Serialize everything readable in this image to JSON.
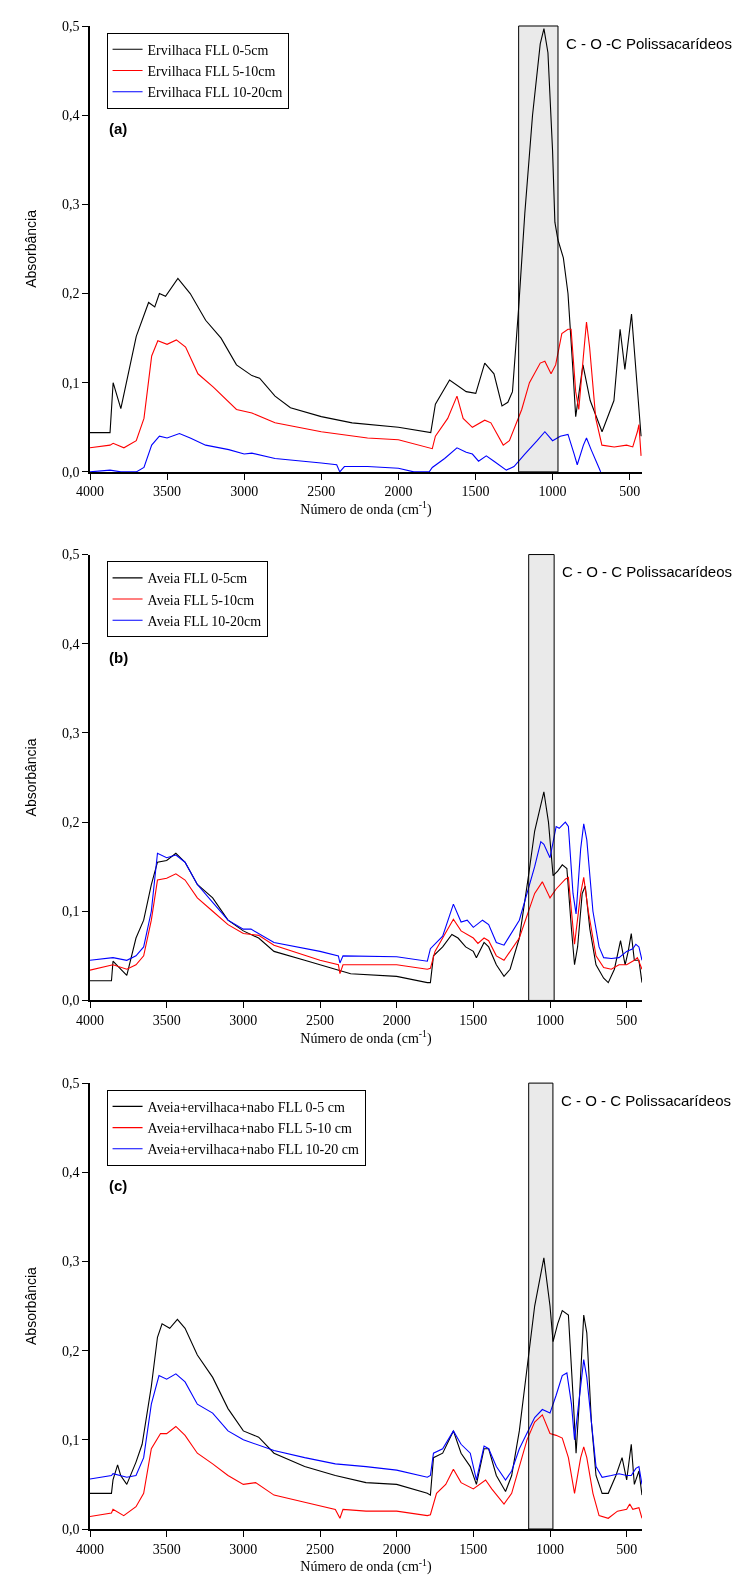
{
  "chart_data": [
    {
      "type": "line",
      "xlabel": "Número de onda (cm$^{-1}$)",
      "ylabel": "Absorbância",
      "annotations": [
        "(a)"
      ],
      "legend": "top left",
      "xlim": [
        4000,
        420
      ],
      "xticks": [
        4000,
        3500,
        3000,
        2500,
        2000,
        1500,
        1000,
        500
      ],
      "ylim": [
        0,
        0.5
      ],
      "yticks": [
        {
          "value": 0,
          "label": "0,0"
        },
        {
          "value": 0.1,
          "label": "0,1"
        },
        {
          "value": 0.2,
          "label": "0,2"
        },
        {
          "value": 0.3,
          "label": "0,3"
        },
        {
          "value": 0.4,
          "label": "0,4"
        },
        {
          "value": 0.5,
          "label": "0,5"
        }
      ],
      "bands": [
        {
          "axis": "x",
          "from": 1220,
          "to": 965,
          "label": "C - O -C Polissacarídeos",
          "color": "#000000"
        }
      ],
      "series": [
        {
          "name": "Ervilhaca FLL 0-5cm",
          "color": "#000000",
          "x": [
            4000,
            3870,
            3850,
            3800,
            3700,
            3620,
            3580,
            3550,
            3510,
            3430,
            3350,
            3250,
            3150,
            3050,
            2950,
            2900,
            2800,
            2700,
            2500,
            2300,
            2000,
            1790,
            1760,
            1668,
            1560,
            1498,
            1440,
            1380,
            1328,
            1290,
            1260,
            1220,
            1180,
            1130,
            1080,
            1056,
            1030,
            1000,
            985,
            965,
            930,
            900,
            870,
            850,
            803,
            756,
            679,
            602,
            562,
            531,
            488,
            426
          ],
          "values": [
            0.044,
            0.044,
            0.1,
            0.071,
            0.152,
            0.19,
            0.185,
            0.2,
            0.197,
            0.217,
            0.2,
            0.17,
            0.15,
            0.12,
            0.108,
            0.105,
            0.085,
            0.072,
            0.062,
            0.055,
            0.05,
            0.044,
            0.076,
            0.103,
            0.09,
            0.088,
            0.122,
            0.11,
            0.074,
            0.078,
            0.09,
            0.184,
            0.29,
            0.4,
            0.48,
            0.497,
            0.47,
            0.36,
            0.28,
            0.26,
            0.24,
            0.2,
            0.12,
            0.062,
            0.12,
            0.08,
            0.045,
            0.08,
            0.16,
            0.115,
            0.177,
            0.04
          ]
        },
        {
          "name": "Ervilhaca FLL 5-10cm",
          "color": "#ff0000",
          "x": [
            4000,
            3870,
            3850,
            3780,
            3700,
            3650,
            3600,
            3560,
            3500,
            3440,
            3380,
            3300,
            3200,
            3050,
            2950,
            2800,
            2500,
            2200,
            2000,
            1780,
            1760,
            1680,
            1620,
            1580,
            1520,
            1440,
            1400,
            1320,
            1280,
            1200,
            1150,
            1080,
            1050,
            1010,
            980,
            940,
            900,
            880,
            850,
            830,
            800,
            780,
            760,
            720,
            680,
            600,
            520,
            480,
            450,
            440,
            426
          ],
          "values": [
            0.027,
            0.03,
            0.032,
            0.027,
            0.035,
            0.06,
            0.13,
            0.147,
            0.143,
            0.148,
            0.14,
            0.11,
            0.095,
            0.07,
            0.066,
            0.055,
            0.045,
            0.038,
            0.036,
            0.026,
            0.04,
            0.06,
            0.085,
            0.06,
            0.05,
            0.058,
            0.055,
            0.03,
            0.035,
            0.07,
            0.1,
            0.122,
            0.124,
            0.11,
            0.12,
            0.155,
            0.16,
            0.16,
            0.09,
            0.07,
            0.13,
            0.168,
            0.14,
            0.06,
            0.03,
            0.028,
            0.03,
            0.028,
            0.045,
            0.053,
            0.018
          ]
        },
        {
          "name": "Ervilhaca FLL 10-20cm",
          "color": "#0000ff",
          "x": [
            4000,
            3870,
            3800,
            3700,
            3650,
            3600,
            3550,
            3500,
            3420,
            3350,
            3250,
            3100,
            3000,
            2950,
            2800,
            2500,
            2400,
            2380,
            2350,
            2200,
            2000,
            1900,
            1800,
            1780,
            1700,
            1620,
            1560,
            1520,
            1480,
            1430,
            1380,
            1300,
            1250,
            1180,
            1100,
            1050,
            1000,
            950,
            900,
            860,
            840,
            800,
            780,
            750,
            700,
            688
          ],
          "values": [
            0,
            0.002,
            0,
            0,
            0.005,
            0.03,
            0.04,
            0.038,
            0.043,
            0.038,
            0.03,
            0.025,
            0.02,
            0.021,
            0.015,
            0.01,
            0.008,
            0,
            0.006,
            0.006,
            0.004,
            0,
            0,
            0.005,
            0.015,
            0.027,
            0.022,
            0.02,
            0.012,
            0.018,
            0.012,
            0.002,
            0.006,
            0.02,
            0.035,
            0.045,
            0.035,
            0.04,
            0.042,
            0.02,
            0.008,
            0.03,
            0.038,
            0.025,
            0.005,
            0
          ]
        }
      ]
    },
    {
      "type": "line",
      "xlabel": "Número de onda (cm$^{-1}$)",
      "ylabel": "Absorbância",
      "annotations": [
        "(b)"
      ],
      "legend": "top left",
      "xlim": [
        4000,
        400
      ],
      "xticks": [
        4000,
        3500,
        3000,
        2500,
        2000,
        1500,
        1000,
        500
      ],
      "ylim": [
        0,
        0.5
      ],
      "yticks": [
        {
          "value": 0,
          "label": "0,0"
        },
        {
          "value": 0.1,
          "label": "0,1"
        },
        {
          "value": 0.2,
          "label": "0,2"
        },
        {
          "value": 0.3,
          "label": "0,3"
        },
        {
          "value": 0.4,
          "label": "0,4"
        },
        {
          "value": 0.5,
          "label": "0,5"
        }
      ],
      "bands": [
        {
          "axis": "x",
          "from": 1139,
          "to": 973,
          "label": "C - O - C Polissacarídeos",
          "color": "#000000"
        }
      ],
      "series": [
        {
          "name": "Aveia FLL 0-5cm",
          "color": "#000000",
          "x": [
            4000,
            3860,
            3850,
            3800,
            3760,
            3700,
            3650,
            3600,
            3560,
            3500,
            3440,
            3380,
            3300,
            3200,
            3100,
            3000,
            2900,
            2800,
            2600,
            2400,
            2300,
            2000,
            1800,
            1780,
            1760,
            1700,
            1640,
            1600,
            1550,
            1500,
            1480,
            1430,
            1400,
            1350,
            1300,
            1260,
            1200,
            1140,
            1100,
            1040,
            1010,
            980,
            950,
            920,
            890,
            860,
            840,
            820,
            790,
            770,
            740,
            700,
            650,
            620,
            580,
            540,
            510,
            490,
            470,
            450,
            420,
            400
          ],
          "values": [
            0.022,
            0.022,
            0.044,
            0.035,
            0.028,
            0.07,
            0.09,
            0.13,
            0.155,
            0.157,
            0.165,
            0.155,
            0.13,
            0.115,
            0.09,
            0.078,
            0.07,
            0.055,
            0.045,
            0.035,
            0.03,
            0.027,
            0.02,
            0.02,
            0.05,
            0.06,
            0.074,
            0.07,
            0.06,
            0.055,
            0.048,
            0.065,
            0.06,
            0.04,
            0.027,
            0.035,
            0.07,
            0.14,
            0.19,
            0.234,
            0.2,
            0.14,
            0.145,
            0.152,
            0.148,
            0.08,
            0.04,
            0.06,
            0.12,
            0.128,
            0.08,
            0.04,
            0.025,
            0.02,
            0.035,
            0.067,
            0.04,
            0.055,
            0.075,
            0.045,
            0.045,
            0.02
          ]
        },
        {
          "name": "Aveia FLL 5-10cm",
          "color": "#ff0000",
          "x": [
            4000,
            3850,
            3760,
            3700,
            3650,
            3600,
            3560,
            3500,
            3440,
            3380,
            3300,
            3200,
            3100,
            3000,
            2900,
            2800,
            2500,
            2380,
            2370,
            2350,
            2000,
            1800,
            1780,
            1750,
            1700,
            1630,
            1580,
            1500,
            1470,
            1430,
            1400,
            1350,
            1300,
            1200,
            1100,
            1050,
            1000,
            960,
            900,
            880,
            860,
            840,
            800,
            780,
            750,
            700,
            650,
            600,
            550,
            500,
            450,
            430,
            400
          ],
          "values": [
            0.034,
            0.04,
            0.035,
            0.04,
            0.05,
            0.09,
            0.135,
            0.137,
            0.142,
            0.135,
            0.115,
            0.1,
            0.085,
            0.075,
            0.073,
            0.062,
            0.045,
            0.04,
            0.03,
            0.04,
            0.04,
            0.035,
            0.036,
            0.055,
            0.07,
            0.091,
            0.078,
            0.07,
            0.064,
            0.07,
            0.067,
            0.05,
            0.045,
            0.07,
            0.12,
            0.133,
            0.115,
            0.125,
            0.136,
            0.138,
            0.1,
            0.063,
            0.12,
            0.138,
            0.1,
            0.05,
            0.037,
            0.035,
            0.04,
            0.04,
            0.045,
            0.048,
            0.035
          ]
        },
        {
          "name": "Aveia FLL 10-20cm",
          "color": "#0000ff",
          "x": [
            4000,
            3850,
            3760,
            3700,
            3650,
            3600,
            3560,
            3500,
            3440,
            3380,
            3300,
            3200,
            3100,
            3000,
            2950,
            2800,
            2500,
            2380,
            2370,
            2350,
            2000,
            1800,
            1780,
            1700,
            1630,
            1580,
            1540,
            1500,
            1440,
            1400,
            1350,
            1300,
            1200,
            1100,
            1060,
            1040,
            1000,
            960,
            940,
            900,
            880,
            850,
            830,
            800,
            780,
            760,
            720,
            680,
            650,
            600,
            550,
            500,
            460,
            440,
            420,
            400
          ],
          "values": [
            0.045,
            0.048,
            0.045,
            0.05,
            0.06,
            0.1,
            0.165,
            0.16,
            0.163,
            0.155,
            0.13,
            0.11,
            0.09,
            0.08,
            0.08,
            0.065,
            0.055,
            0.05,
            0.042,
            0.05,
            0.049,
            0.044,
            0.058,
            0.072,
            0.108,
            0.088,
            0.09,
            0.082,
            0.09,
            0.085,
            0.065,
            0.062,
            0.09,
            0.15,
            0.178,
            0.175,
            0.16,
            0.195,
            0.193,
            0.2,
            0.195,
            0.12,
            0.097,
            0.17,
            0.198,
            0.18,
            0.1,
            0.06,
            0.048,
            0.047,
            0.048,
            0.055,
            0.058,
            0.063,
            0.06,
            0.045
          ]
        }
      ]
    },
    {
      "type": "line",
      "xlabel": "Número de onda (cm$^{-1}$)",
      "ylabel": "Absorbância",
      "annotations": [
        "(c)"
      ],
      "legend": "top left",
      "xlim": [
        4000,
        400
      ],
      "xticks": [
        4000,
        3500,
        3000,
        2500,
        2000,
        1500,
        1000,
        500
      ],
      "ylim": [
        0,
        0.5
      ],
      "yticks": [
        {
          "value": 0,
          "label": "0,0"
        },
        {
          "value": 0.1,
          "label": "0,1"
        },
        {
          "value": 0.2,
          "label": "0,2"
        },
        {
          "value": 0.3,
          "label": "0,3"
        },
        {
          "value": 0.4,
          "label": "0,4"
        },
        {
          "value": 0.5,
          "label": "0,5"
        }
      ],
      "bands": [
        {
          "axis": "x",
          "from": 1139,
          "to": 981,
          "label": "C - O - C Polissacarídeos",
          "color": "#000000"
        }
      ],
      "series": [
        {
          "name": "Aveia+ervilhaca+nabo FLL 0-5 cm",
          "color": "#000000",
          "x": [
            4000,
            3860,
            3850,
            3820,
            3800,
            3760,
            3700,
            3660,
            3600,
            3560,
            3530,
            3480,
            3430,
            3380,
            3300,
            3200,
            3100,
            3000,
            2900,
            2800,
            2600,
            2400,
            2200,
            2000,
            1800,
            1780,
            1760,
            1700,
            1630,
            1580,
            1520,
            1480,
            1430,
            1400,
            1350,
            1290,
            1250,
            1200,
            1150,
            1100,
            1040,
            1000,
            980,
            950,
            920,
            880,
            850,
            830,
            810,
            780,
            760,
            730,
            700,
            660,
            620,
            570,
            530,
            500,
            470,
            450,
            420,
            400
          ],
          "values": [
            0.04,
            0.04,
            0.055,
            0.072,
            0.06,
            0.05,
            0.075,
            0.095,
            0.16,
            0.215,
            0.23,
            0.225,
            0.235,
            0.225,
            0.195,
            0.17,
            0.135,
            0.11,
            0.103,
            0.085,
            0.07,
            0.06,
            0.052,
            0.05,
            0.04,
            0.038,
            0.08,
            0.085,
            0.11,
            0.085,
            0.07,
            0.05,
            0.09,
            0.09,
            0.06,
            0.042,
            0.06,
            0.11,
            0.18,
            0.25,
            0.304,
            0.25,
            0.21,
            0.23,
            0.245,
            0.24,
            0.15,
            0.085,
            0.14,
            0.24,
            0.22,
            0.12,
            0.06,
            0.04,
            0.04,
            0.06,
            0.08,
            0.055,
            0.095,
            0.05,
            0.065,
            0.038
          ]
        },
        {
          "name": "Aveia+ervilhaca+nabo FLL 5-10 cm",
          "color": "#ff0000",
          "x": [
            4000,
            3860,
            3850,
            3780,
            3700,
            3650,
            3600,
            3540,
            3500,
            3440,
            3380,
            3300,
            3200,
            3100,
            3000,
            2920,
            2800,
            2600,
            2400,
            2370,
            2350,
            2200,
            2000,
            1800,
            1780,
            1740,
            1680,
            1630,
            1580,
            1500,
            1420,
            1380,
            1300,
            1250,
            1200,
            1150,
            1100,
            1050,
            1000,
            960,
            920,
            880,
            840,
            800,
            780,
            760,
            720,
            680,
            620,
            560,
            500,
            480,
            460,
            420,
            400
          ],
          "values": [
            0.014,
            0.018,
            0.022,
            0.015,
            0.025,
            0.04,
            0.09,
            0.107,
            0.107,
            0.115,
            0.105,
            0.085,
            0.073,
            0.06,
            0.05,
            0.052,
            0.038,
            0.03,
            0.022,
            0.012,
            0.022,
            0.02,
            0.02,
            0.015,
            0.016,
            0.04,
            0.05,
            0.067,
            0.052,
            0.045,
            0.055,
            0.045,
            0.028,
            0.04,
            0.07,
            0.1,
            0.12,
            0.128,
            0.107,
            0.105,
            0.102,
            0.08,
            0.04,
            0.08,
            0.092,
            0.08,
            0.04,
            0.015,
            0.012,
            0.02,
            0.022,
            0.028,
            0.022,
            0.024,
            0.012
          ]
        },
        {
          "name": "Aveia+ervilhaca+nabo FLL 10-20 cm",
          "color": "#0000ff",
          "x": [
            4000,
            3860,
            3850,
            3760,
            3700,
            3650,
            3600,
            3550,
            3500,
            3440,
            3380,
            3300,
            3200,
            3100,
            3000,
            2800,
            2600,
            2400,
            2200,
            2000,
            1800,
            1780,
            1760,
            1700,
            1630,
            1580,
            1520,
            1480,
            1430,
            1400,
            1350,
            1290,
            1250,
            1200,
            1100,
            1050,
            1000,
            960,
            920,
            890,
            860,
            840,
            820,
            780,
            760,
            730,
            700,
            660,
            600,
            550,
            500,
            470,
            440,
            420,
            400
          ],
          "values": [
            0.056,
            0.06,
            0.062,
            0.058,
            0.06,
            0.08,
            0.14,
            0.172,
            0.168,
            0.174,
            0.165,
            0.14,
            0.13,
            0.11,
            0.1,
            0.088,
            0.08,
            0.073,
            0.07,
            0.066,
            0.058,
            0.06,
            0.085,
            0.09,
            0.11,
            0.095,
            0.085,
            0.055,
            0.093,
            0.09,
            0.07,
            0.055,
            0.065,
            0.09,
            0.125,
            0.134,
            0.13,
            0.15,
            0.172,
            0.175,
            0.14,
            0.1,
            0.13,
            0.19,
            0.17,
            0.12,
            0.07,
            0.058,
            0.06,
            0.062,
            0.06,
            0.06,
            0.068,
            0.07,
            0.05
          ]
        }
      ]
    }
  ]
}
